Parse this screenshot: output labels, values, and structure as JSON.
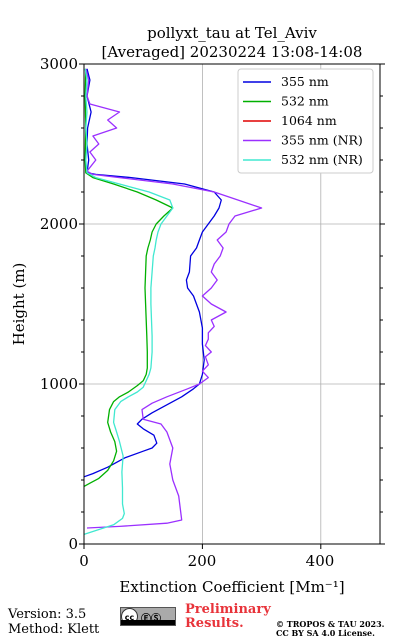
{
  "chart_data": {
    "type": "line",
    "title": "pollyxt_tau at Tel_Aviv",
    "subtitle": "[Averaged] 20230224 13:08-14:08",
    "xlabel": "Extinction Coefficient [Mm⁻¹]",
    "ylabel": "Height (m)",
    "xlim": [
      0,
      500
    ],
    "ylim": [
      0,
      3000
    ],
    "x_ticks": [
      "0",
      "200",
      "400"
    ],
    "y_ticks": [
      "0",
      "1000",
      "2000",
      "3000"
    ],
    "grid": true,
    "legend_position": "top-right",
    "series": [
      {
        "name": "355 nm",
        "color": "#0000e0",
        "points": [
          [
            0,
            420
          ],
          [
            15,
            440
          ],
          [
            40,
            480
          ],
          [
            70,
            540
          ],
          [
            100,
            580
          ],
          [
            115,
            600
          ],
          [
            123,
            630
          ],
          [
            118,
            680
          ],
          [
            100,
            720
          ],
          [
            90,
            750
          ],
          [
            98,
            780
          ],
          [
            115,
            820
          ],
          [
            140,
            870
          ],
          [
            165,
            920
          ],
          [
            185,
            970
          ],
          [
            195,
            1000
          ],
          [
            200,
            1060
          ],
          [
            203,
            1150
          ],
          [
            200,
            1250
          ],
          [
            200,
            1350
          ],
          [
            195,
            1450
          ],
          [
            185,
            1550
          ],
          [
            175,
            1600
          ],
          [
            173,
            1650
          ],
          [
            178,
            1700
          ],
          [
            180,
            1800
          ],
          [
            190,
            1850
          ],
          [
            195,
            1900
          ],
          [
            200,
            1950
          ],
          [
            210,
            2000
          ],
          [
            220,
            2050
          ],
          [
            228,
            2100
          ],
          [
            232,
            2150
          ],
          [
            220,
            2200
          ],
          [
            170,
            2250
          ],
          [
            80,
            2290
          ],
          [
            20,
            2310
          ],
          [
            5,
            2320
          ],
          [
            8,
            2400
          ],
          [
            5,
            2500
          ],
          [
            6,
            2600
          ],
          [
            12,
            2700
          ],
          [
            5,
            2800
          ],
          [
            10,
            2900
          ],
          [
            5,
            2970
          ]
        ]
      },
      {
        "name": "532 nm",
        "color": "#00b000",
        "points": [
          [
            0,
            360
          ],
          [
            10,
            380
          ],
          [
            25,
            410
          ],
          [
            40,
            460
          ],
          [
            50,
            520
          ],
          [
            55,
            580
          ],
          [
            52,
            640
          ],
          [
            45,
            700
          ],
          [
            40,
            760
          ],
          [
            43,
            840
          ],
          [
            50,
            890
          ],
          [
            60,
            920
          ],
          [
            75,
            950
          ],
          [
            90,
            990
          ],
          [
            100,
            1020
          ],
          [
            105,
            1060
          ],
          [
            107,
            1100
          ],
          [
            107,
            1200
          ],
          [
            106,
            1300
          ],
          [
            105,
            1400
          ],
          [
            104,
            1500
          ],
          [
            103,
            1600
          ],
          [
            104,
            1700
          ],
          [
            105,
            1800
          ],
          [
            108,
            1850
          ],
          [
            112,
            1900
          ],
          [
            115,
            1950
          ],
          [
            122,
            2000
          ],
          [
            135,
            2050
          ],
          [
            150,
            2100
          ],
          [
            122,
            2150
          ],
          [
            90,
            2200
          ],
          [
            50,
            2250
          ],
          [
            15,
            2290
          ],
          [
            3,
            2320
          ],
          [
            2,
            2400
          ],
          [
            3,
            2600
          ],
          [
            2,
            2800
          ],
          [
            3,
            2970
          ]
        ]
      },
      {
        "name": "1064 nm",
        "color": "#e00000",
        "points": []
      },
      {
        "name": "355 nm (NR)",
        "color": "#9b30ff",
        "points": [
          [
            5,
            100
          ],
          [
            60,
            110
          ],
          [
            140,
            130
          ],
          [
            165,
            150
          ],
          [
            160,
            300
          ],
          [
            150,
            400
          ],
          [
            145,
            500
          ],
          [
            150,
            600
          ],
          [
            140,
            700
          ],
          [
            130,
            750
          ],
          [
            100,
            780
          ],
          [
            98,
            840
          ],
          [
            115,
            880
          ],
          [
            140,
            920
          ],
          [
            175,
            970
          ],
          [
            195,
            1000
          ],
          [
            210,
            1040
          ],
          [
            200,
            1080
          ],
          [
            210,
            1120
          ],
          [
            205,
            1170
          ],
          [
            215,
            1200
          ],
          [
            205,
            1240
          ],
          [
            210,
            1280
          ],
          [
            210,
            1320
          ],
          [
            220,
            1360
          ],
          [
            215,
            1400
          ],
          [
            240,
            1450
          ],
          [
            215,
            1500
          ],
          [
            200,
            1550
          ],
          [
            215,
            1600
          ],
          [
            225,
            1650
          ],
          [
            215,
            1700
          ],
          [
            220,
            1750
          ],
          [
            230,
            1800
          ],
          [
            235,
            1850
          ],
          [
            225,
            1900
          ],
          [
            240,
            1950
          ],
          [
            245,
            2000
          ],
          [
            255,
            2050
          ],
          [
            300,
            2100
          ],
          [
            260,
            2150
          ],
          [
            220,
            2200
          ],
          [
            150,
            2250
          ],
          [
            60,
            2290
          ],
          [
            15,
            2310
          ],
          [
            5,
            2330
          ],
          [
            20,
            2400
          ],
          [
            10,
            2450
          ],
          [
            25,
            2500
          ],
          [
            15,
            2550
          ],
          [
            55,
            2600
          ],
          [
            40,
            2650
          ],
          [
            60,
            2700
          ],
          [
            10,
            2750
          ],
          [
            5,
            2800
          ],
          [
            8,
            2900
          ],
          [
            3,
            2970
          ]
        ]
      },
      {
        "name": "532 nm (NR)",
        "color": "#40e8d0",
        "points": [
          [
            0,
            60
          ],
          [
            50,
            120
          ],
          [
            65,
            160
          ],
          [
            68,
            190
          ],
          [
            65,
            250
          ],
          [
            65,
            350
          ],
          [
            64,
            450
          ],
          [
            66,
            550
          ],
          [
            60,
            640
          ],
          [
            55,
            700
          ],
          [
            50,
            760
          ],
          [
            52,
            840
          ],
          [
            62,
            890
          ],
          [
            75,
            920
          ],
          [
            90,
            950
          ],
          [
            100,
            980
          ],
          [
            105,
            1020
          ],
          [
            110,
            1060
          ],
          [
            113,
            1100
          ],
          [
            115,
            1200
          ],
          [
            115,
            1300
          ],
          [
            114,
            1400
          ],
          [
            113,
            1500
          ],
          [
            113,
            1600
          ],
          [
            115,
            1700
          ],
          [
            117,
            1800
          ],
          [
            120,
            1850
          ],
          [
            122,
            1900
          ],
          [
            125,
            1950
          ],
          [
            130,
            2000
          ],
          [
            140,
            2050
          ],
          [
            150,
            2100
          ],
          [
            145,
            2150
          ],
          [
            110,
            2200
          ],
          [
            60,
            2250
          ],
          [
            20,
            2290
          ],
          [
            5,
            2320
          ],
          [
            3,
            2400
          ],
          [
            5,
            2500
          ],
          [
            3,
            2600
          ],
          [
            5,
            2700
          ],
          [
            3,
            2800
          ],
          [
            5,
            2900
          ],
          [
            2,
            2970
          ]
        ]
      }
    ]
  },
  "footer": {
    "version": "Version: 3.5",
    "method": "Method: Klett",
    "badge_left": "cc",
    "badge_mid": "ⒺⓈ",
    "preliminary_line1": "Preliminary",
    "preliminary_line2": "Results.",
    "copyright_line1": "© TROPOS & TAU 2023.",
    "copyright_line2": "CC BY SA 4.0 License."
  }
}
